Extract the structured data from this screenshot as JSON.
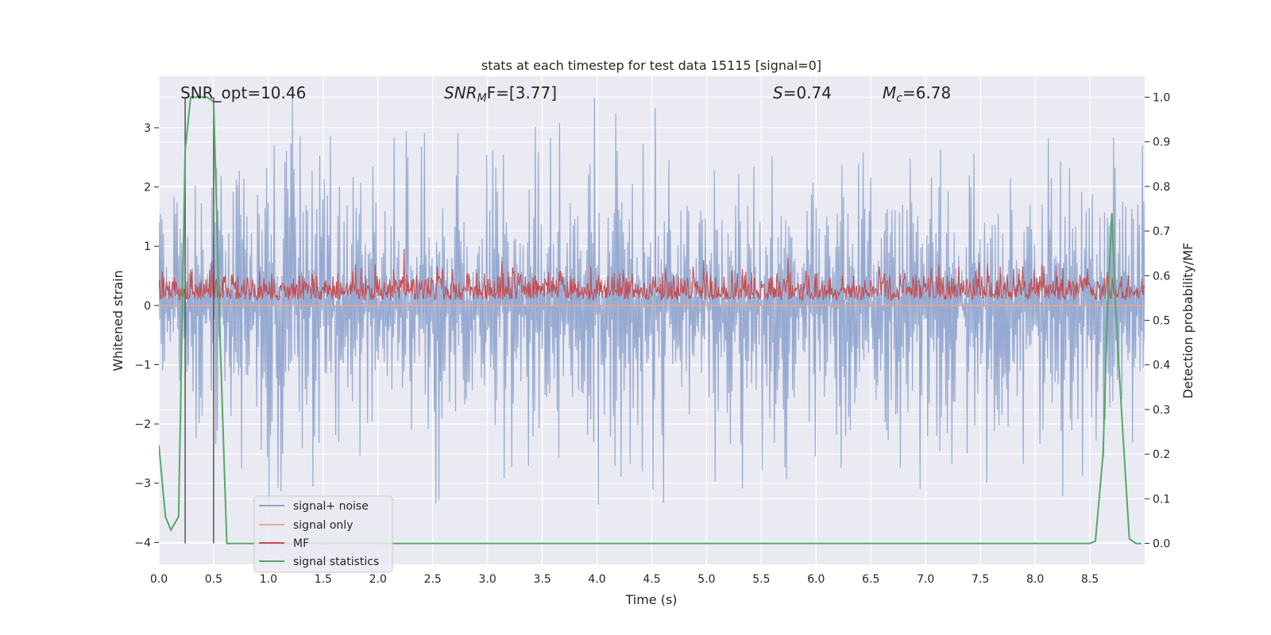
{
  "chart_data": {
    "type": "line",
    "title": "stats at each timestep for test data 15115 [signal=0]",
    "xlabel": "Time (s)",
    "ylabel_left": "Whitened strain",
    "ylabel_right": "Detection probability/MF",
    "xlim": [
      0.0,
      9.0
    ],
    "ylim_left": [
      -4.37,
      3.87
    ],
    "ylim_right": [
      -0.047,
      1.047
    ],
    "grid": true,
    "legend_position": "lower-left",
    "x_ticks": [
      "0.0",
      "0.5",
      "1.0",
      "1.5",
      "2.0",
      "2.5",
      "3.0",
      "3.5",
      "4.0",
      "4.5",
      "5.0",
      "5.5",
      "6.0",
      "6.5",
      "7.0",
      "7.5",
      "8.0",
      "8.5"
    ],
    "y_ticks_left": [
      "−4",
      "−3",
      "−2",
      "−1",
      "0",
      "1",
      "2",
      "3"
    ],
    "y_ticks_right": [
      "0.0",
      "0.1",
      "0.2",
      "0.3",
      "0.4",
      "0.5",
      "0.6",
      "0.7",
      "0.8",
      "0.9",
      "1.0"
    ],
    "annotations": {
      "snr_opt": "SNR_opt=10.46",
      "snr_mf_base": "SNR",
      "snr_mf_sub": "M",
      "snr_mf_rest": "F=[3.77]",
      "s_var": "S",
      "s_value": "=0.74",
      "mc_var": "M",
      "mc_sub": "c",
      "mc_value": "=6.78"
    },
    "vertical_lines": [
      0.24,
      0.5
    ],
    "series": [
      {
        "name": "signal+ noise",
        "color": "#8ea3cd",
        "amplitude_typical": 1.8,
        "amplitude_max": 3.5,
        "description_range": [
          -4.0,
          3.5
        ]
      },
      {
        "name": "signal only",
        "color": "#f0a787",
        "values_constant": 0.0
      },
      {
        "name": "MF",
        "color": "#c44e52",
        "range_right_axis": [
          0.53,
          0.66
        ]
      },
      {
        "name": "signal statistics",
        "color": "#55a868",
        "x": [
          0.0,
          0.06,
          0.11,
          0.18,
          0.24,
          0.29,
          0.36,
          0.44,
          0.5,
          0.56,
          0.62,
          0.66,
          1.0,
          2.0,
          3.0,
          4.0,
          5.0,
          6.0,
          7.0,
          8.0,
          8.5,
          8.55,
          8.62,
          8.66,
          8.7,
          8.74,
          8.8,
          8.86,
          8.92,
          8.97
        ],
        "y": [
          0.22,
          0.06,
          0.03,
          0.06,
          0.88,
          1.0,
          1.0,
          1.0,
          0.99,
          0.45,
          0.0,
          0.0,
          0.0,
          0.0,
          0.0,
          0.0,
          0.0,
          0.0,
          0.0,
          0.0,
          0.0,
          0.005,
          0.2,
          0.52,
          0.74,
          0.5,
          0.25,
          0.01,
          0.0,
          0.0
        ]
      }
    ]
  }
}
